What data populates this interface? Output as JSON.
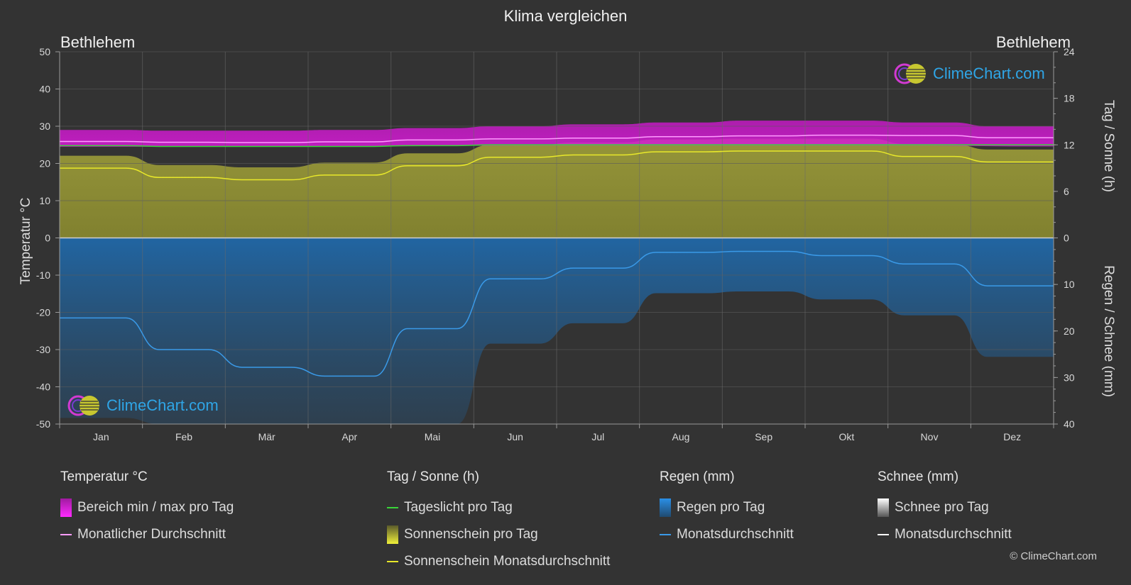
{
  "title": "Klima vergleichen",
  "location_left": "Bethlehem",
  "location_right": "Bethlehem",
  "axis_left_label": "Temperatur °C",
  "axis_right_top_label": "Tag / Sonne (h)",
  "axis_right_bottom_label": "Regen / Schnee (mm)",
  "logo_text": "ClimeChart.com",
  "copyright": "© ClimeChart.com",
  "legend": {
    "temperature": {
      "heading": "Temperatur °C",
      "range": "Bereich min / max pro Tag",
      "avg": "Monatlicher Durchschnitt"
    },
    "sun": {
      "heading": "Tag / Sonne (h)",
      "daylight": "Tageslicht pro Tag",
      "sunshine": "Sonnenschein pro Tag",
      "sunshine_avg": "Sonnenschein Monatsdurchschnitt"
    },
    "rain": {
      "heading": "Regen (mm)",
      "per_day": "Regen pro Tag",
      "avg": "Monatsdurchschnitt"
    },
    "snow": {
      "heading": "Schnee (mm)",
      "per_day": "Schnee pro Tag",
      "avg": "Monatsdurchschnitt"
    }
  },
  "colors": {
    "background": "#333333",
    "temp_range": "#d81ad8",
    "temp_avg": "#ff9cff",
    "daylight": "#39d639",
    "sunshine_fill": "#8f8f35",
    "sunshine_avg": "#e8e82a",
    "rain_fill": "#1f5f99",
    "rain_avg": "#3a9ae8",
    "snow": "#ffffff"
  },
  "chart_data": {
    "type": "area",
    "months": [
      "Jan",
      "Feb",
      "Mär",
      "Apr",
      "Mai",
      "Jun",
      "Jul",
      "Aug",
      "Sep",
      "Okt",
      "Nov",
      "Dez"
    ],
    "temp_axis": {
      "min": -50,
      "max": 50,
      "ticks": [
        50,
        40,
        30,
        20,
        10,
        0,
        -10,
        -20,
        -30,
        -40,
        -50
      ]
    },
    "sun_axis": {
      "min": 0,
      "max": 24,
      "ticks": [
        24,
        18,
        12,
        6,
        0
      ]
    },
    "rain_axis": {
      "min": 0,
      "max": 40,
      "ticks": [
        0,
        10,
        20,
        30,
        40
      ]
    },
    "grid": true,
    "series": [
      {
        "name": "Bereich min / max pro Tag",
        "kind": "band",
        "min": [
          24.5,
          24.5,
          24.5,
          24.5,
          24.7,
          24.8,
          24.8,
          24.8,
          24.8,
          24.8,
          24.8,
          24.6
        ],
        "max": [
          29.0,
          28.8,
          28.8,
          29.0,
          29.5,
          30.0,
          30.5,
          31.0,
          31.5,
          31.5,
          31.0,
          30.0
        ]
      },
      {
        "name": "Monatlicher Durchschnitt",
        "kind": "line",
        "values": [
          25.9,
          25.7,
          25.6,
          25.8,
          26.3,
          26.6,
          26.8,
          27.2,
          27.4,
          27.6,
          27.5,
          26.9
        ]
      },
      {
        "name": "Tageslicht pro Tag",
        "kind": "line",
        "values": [
          11.9,
          11.8,
          11.8,
          11.8,
          11.9,
          12.0,
          12.0,
          12.0,
          12.0,
          12.0,
          12.0,
          12.0
        ]
      },
      {
        "name": "Sonnenschein Monatsdurchschnitt",
        "kind": "line",
        "values": [
          9.0,
          7.8,
          7.5,
          8.1,
          9.3,
          10.4,
          10.7,
          11.1,
          11.2,
          11.2,
          10.5,
          9.8
        ]
      },
      {
        "name": "Monatsdurchschnitt (Regen)",
        "kind": "line",
        "values": [
          17.2,
          24.0,
          27.8,
          29.7,
          19.5,
          8.8,
          6.5,
          3.1,
          2.9,
          3.8,
          5.6,
          10.3
        ]
      }
    ]
  }
}
